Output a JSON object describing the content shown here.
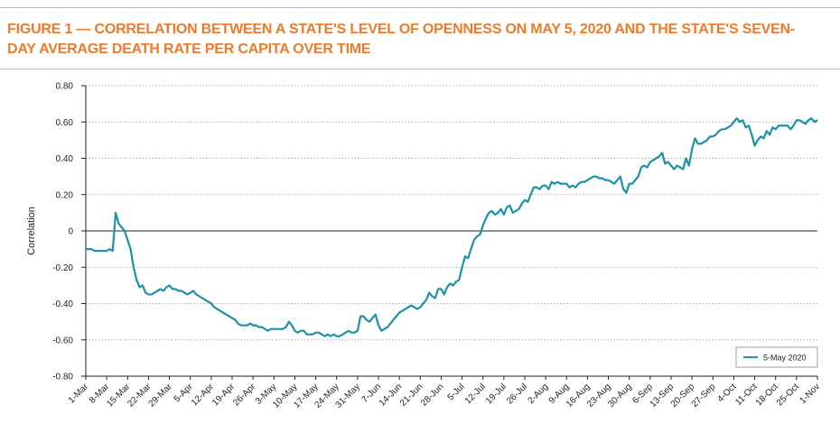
{
  "chart_data": {
    "type": "line",
    "title": "FIGURE 1 — CORRELATION BETWEEN A STATE'S LEVEL OF OPENNESS ON MAY 5, 2020 AND THE STATE'S SEVEN-DAY AVERAGE DEATH RATE PER CAPITA OVER TIME",
    "y_label": "Correlation",
    "legend": "bottom-right",
    "grid": true,
    "ylim": [
      -0.8,
      0.8
    ],
    "yticks": [
      {
        "value": -0.8,
        "label": "-0.80"
      },
      {
        "value": -0.6,
        "label": "-0.60"
      },
      {
        "value": -0.4,
        "label": "-0.40"
      },
      {
        "value": -0.2,
        "label": "-0.20"
      },
      0,
      {
        "value": 0.2,
        "label": "0.20"
      },
      {
        "value": 0.4,
        "label": "0.40"
      },
      {
        "value": 0.6,
        "label": "0.60"
      },
      {
        "value": 0.8,
        "label": "0.80"
      }
    ],
    "categories": [
      "1-Mar",
      null,
      null,
      null,
      null,
      null,
      null,
      "8-Mar",
      null,
      null,
      null,
      null,
      null,
      null,
      "15-Mar",
      null,
      null,
      null,
      null,
      null,
      null,
      "22-Mar",
      null,
      null,
      null,
      null,
      null,
      null,
      "29-Mar",
      null,
      null,
      null,
      null,
      null,
      null,
      "5-Apr",
      null,
      null,
      null,
      null,
      null,
      null,
      "12-Apr",
      null,
      null,
      null,
      null,
      null,
      null,
      "19-Apr",
      null,
      null,
      null,
      null,
      null,
      null,
      "26-Apr",
      null,
      null,
      null,
      null,
      null,
      null,
      "3-May",
      null,
      null,
      null,
      null,
      null,
      null,
      "10-May",
      null,
      null,
      null,
      null,
      null,
      null,
      "17-May",
      null,
      null,
      null,
      null,
      null,
      null,
      "24-May",
      null,
      null,
      null,
      null,
      null,
      null,
      "31-May",
      null,
      null,
      null,
      null,
      null,
      null,
      "7-Jun",
      null,
      null,
      null,
      null,
      null,
      null,
      "14-Jun",
      null,
      null,
      null,
      null,
      null,
      null,
      "21-Jun",
      null,
      null,
      null,
      null,
      null,
      null,
      "28-Jun",
      null,
      null,
      null,
      null,
      null,
      null,
      "5-Jul",
      null,
      null,
      null,
      null,
      null,
      null,
      "12-Jul",
      null,
      null,
      null,
      null,
      null,
      null,
      "19-Jul",
      null,
      null,
      null,
      null,
      null,
      null,
      "26-Jul",
      null,
      null,
      null,
      null,
      null,
      null,
      "2-Aug",
      null,
      null,
      null,
      null,
      null,
      null,
      "9-Aug",
      null,
      null,
      null,
      null,
      null,
      null,
      "16-Aug",
      null,
      null,
      null,
      null,
      null,
      null,
      "23-Aug",
      null,
      null,
      null,
      null,
      null,
      null,
      "30-Aug",
      null,
      null,
      null,
      null,
      null,
      null,
      "6-Sep",
      null,
      null,
      null,
      null,
      null,
      null,
      "13-Sep",
      null,
      null,
      null,
      null,
      null,
      null,
      "20-Sep",
      null,
      null,
      null,
      null,
      null,
      null,
      "27-Sep",
      null,
      null,
      null,
      null,
      null,
      null,
      "4-Oct",
      null,
      null,
      null,
      null,
      null,
      null,
      "11-Oct",
      null,
      null,
      null,
      null,
      null,
      null,
      "18-Oct",
      null,
      null,
      null,
      null,
      null,
      null,
      "25-Oct",
      null,
      null,
      null,
      null,
      null,
      null,
      "1-Nov"
    ],
    "series": [
      {
        "name": "5-May 2020",
        "color": "#1a93a6",
        "values": [
          -0.1,
          -0.1,
          -0.1,
          -0.11,
          -0.11,
          -0.11,
          -0.11,
          -0.11,
          -0.1,
          -0.11,
          0.1,
          0.04,
          0.02,
          0.0,
          -0.05,
          -0.1,
          -0.2,
          -0.27,
          -0.31,
          -0.3,
          -0.34,
          -0.35,
          -0.35,
          -0.34,
          -0.33,
          -0.32,
          -0.33,
          -0.31,
          -0.3,
          -0.32,
          -0.32,
          -0.33,
          -0.33,
          -0.34,
          -0.35,
          -0.34,
          -0.33,
          -0.35,
          -0.36,
          -0.37,
          -0.38,
          -0.39,
          -0.4,
          -0.42,
          -0.43,
          -0.44,
          -0.45,
          -0.46,
          -0.47,
          -0.48,
          -0.49,
          -0.51,
          -0.52,
          -0.52,
          -0.52,
          -0.51,
          -0.52,
          -0.52,
          -0.53,
          -0.53,
          -0.54,
          -0.55,
          -0.54,
          -0.54,
          -0.54,
          -0.54,
          -0.54,
          -0.53,
          -0.5,
          -0.52,
          -0.55,
          -0.56,
          -0.55,
          -0.55,
          -0.57,
          -0.57,
          -0.57,
          -0.56,
          -0.56,
          -0.57,
          -0.58,
          -0.57,
          -0.58,
          -0.57,
          -0.58,
          -0.58,
          -0.57,
          -0.56,
          -0.55,
          -0.56,
          -0.56,
          -0.55,
          -0.47,
          -0.47,
          -0.49,
          -0.5,
          -0.48,
          -0.46,
          -0.52,
          -0.55,
          -0.54,
          -0.53,
          -0.51,
          -0.49,
          -0.47,
          -0.45,
          -0.44,
          -0.43,
          -0.42,
          -0.41,
          -0.42,
          -0.43,
          -0.42,
          -0.4,
          -0.38,
          -0.34,
          -0.36,
          -0.37,
          -0.32,
          -0.32,
          -0.35,
          -0.31,
          -0.29,
          -0.3,
          -0.28,
          -0.27,
          -0.2,
          -0.14,
          -0.15,
          -0.1,
          -0.05,
          -0.03,
          -0.02,
          0.03,
          0.07,
          0.1,
          0.11,
          0.09,
          0.1,
          0.12,
          0.09,
          0.13,
          0.14,
          0.1,
          0.11,
          0.12,
          0.15,
          0.17,
          0.16,
          0.2,
          0.24,
          0.24,
          0.23,
          0.25,
          0.25,
          0.23,
          0.27,
          0.26,
          0.27,
          0.26,
          0.26,
          0.26,
          0.24,
          0.25,
          0.24,
          0.26,
          0.27,
          0.27,
          0.28,
          0.29,
          0.3,
          0.3,
          0.29,
          0.29,
          0.28,
          0.28,
          0.27,
          0.26,
          0.28,
          0.3,
          0.23,
          0.21,
          0.26,
          0.26,
          0.28,
          0.3,
          0.35,
          0.36,
          0.35,
          0.38,
          0.39,
          0.4,
          0.41,
          0.43,
          0.37,
          0.38,
          0.36,
          0.34,
          0.36,
          0.35,
          0.34,
          0.4,
          0.36,
          0.45,
          0.51,
          0.48,
          0.48,
          0.49,
          0.5,
          0.52,
          0.52,
          0.53,
          0.55,
          0.56,
          0.56,
          0.57,
          0.58,
          0.6,
          0.62,
          0.6,
          0.61,
          0.57,
          0.58,
          0.53,
          0.47,
          0.5,
          0.52,
          0.51,
          0.55,
          0.53,
          0.57,
          0.56,
          0.58,
          0.58,
          0.58,
          0.58,
          0.56,
          0.58,
          0.61,
          0.61,
          0.6,
          0.59,
          0.61,
          0.62,
          0.6,
          0.61
        ]
      }
    ]
  }
}
